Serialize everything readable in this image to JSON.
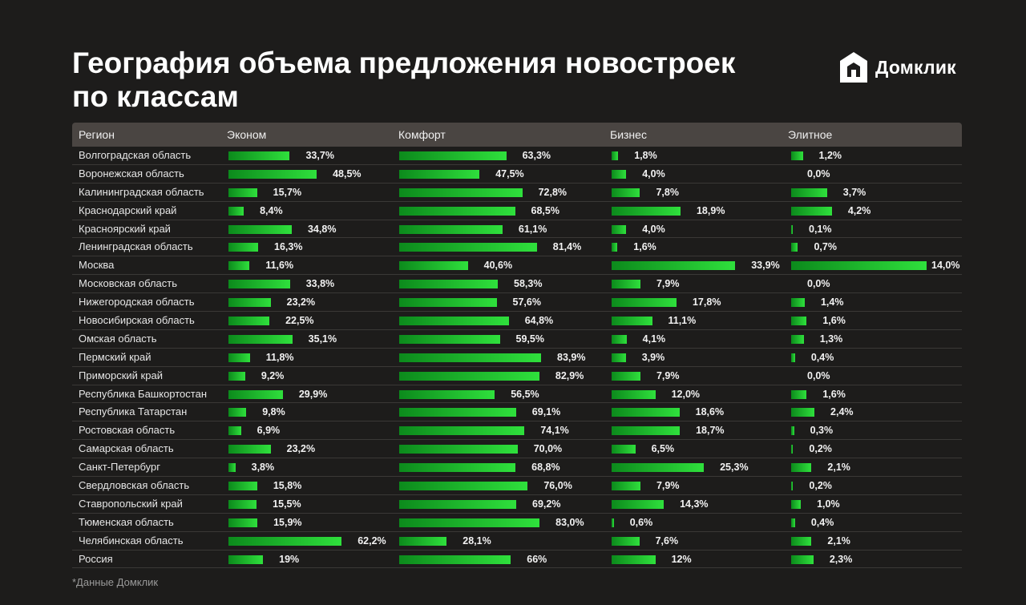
{
  "title_line1": "География объема предложения новостроек",
  "title_line2": "по классам",
  "brand": "Домклик",
  "footnote": "*Данные Домклик",
  "colors": {
    "background": "#1d1c1b",
    "bar": "#2fe03c",
    "header": "#4a4542"
  },
  "chart_data": {
    "type": "bar",
    "headers": [
      "Регион",
      "Эконом",
      "Комфорт",
      "Бизнес",
      "Элитное"
    ],
    "categories": [
      "Волгоградская область",
      "Воронежская область",
      "Калининградская область",
      "Краснодарский край",
      "Красноярский край",
      "Ленинградская область",
      "Москва",
      "Московская область",
      "Нижегородская область",
      "Новосибирская область",
      "Омская область",
      "Пермский край",
      "Приморский край",
      "Республика Башкортостан",
      "Республика Татарстан",
      "Ростовская область",
      "Самарская область",
      "Санкт-Петербург",
      "Свердловская область",
      "Ставропольский край",
      "Тюменская область",
      "Челябинская область",
      "Россия"
    ],
    "series": [
      {
        "name": "Эконом",
        "values": [
          33.7,
          48.5,
          15.7,
          8.4,
          34.8,
          16.3,
          11.6,
          33.8,
          23.2,
          22.5,
          35.1,
          11.8,
          9.2,
          29.9,
          9.8,
          6.9,
          23.2,
          3.8,
          15.8,
          15.5,
          15.9,
          62.2,
          19
        ],
        "labels": [
          "33,7%",
          "48,5%",
          "15,7%",
          "8,4%",
          "34,8%",
          "16,3%",
          "11,6%",
          "33,8%",
          "23,2%",
          "22,5%",
          "35,1%",
          "11,8%",
          "9,2%",
          "29,9%",
          "9,8%",
          "6,9%",
          "23,2%",
          "3,8%",
          "15,8%",
          "15,5%",
          "15,9%",
          "62,2%",
          "19%"
        ]
      },
      {
        "name": "Комфорт",
        "values": [
          63.3,
          47.5,
          72.8,
          68.5,
          61.1,
          81.4,
          40.6,
          58.3,
          57.6,
          64.8,
          59.5,
          83.9,
          82.9,
          56.5,
          69.1,
          74.1,
          70.0,
          68.8,
          76.0,
          69.2,
          83.0,
          28.1,
          66
        ],
        "labels": [
          "63,3%",
          "47,5%",
          "72,8%",
          "68,5%",
          "61,1%",
          "81,4%",
          "40,6%",
          "58,3%",
          "57,6%",
          "64,8%",
          "59,5%",
          "83,9%",
          "82,9%",
          "56,5%",
          "69,1%",
          "74,1%",
          "70,0%",
          "68,8%",
          "76,0%",
          "69,2%",
          "83,0%",
          "28,1%",
          "66%"
        ]
      },
      {
        "name": "Бизнес",
        "values": [
          1.8,
          4.0,
          7.8,
          18.9,
          4.0,
          1.6,
          33.9,
          7.9,
          17.8,
          11.1,
          4.1,
          3.9,
          7.9,
          12.0,
          18.6,
          18.7,
          6.5,
          25.3,
          7.9,
          14.3,
          0.6,
          7.6,
          12
        ],
        "labels": [
          "1,8%",
          "4,0%",
          "7,8%",
          "18,9%",
          "4,0%",
          "1,6%",
          "33,9%",
          "7,9%",
          "17,8%",
          "11,1%",
          "4,1%",
          "3,9%",
          "7,9%",
          "12,0%",
          "18,6%",
          "18,7%",
          "6,5%",
          "25,3%",
          "7,9%",
          "14,3%",
          "0,6%",
          "7,6%",
          "12%"
        ]
      },
      {
        "name": "Элитное",
        "values": [
          1.2,
          0.0,
          3.7,
          4.2,
          0.1,
          0.7,
          14.0,
          0.0,
          1.4,
          1.6,
          1.3,
          0.4,
          0.0,
          1.6,
          2.4,
          0.3,
          0.2,
          2.1,
          0.2,
          1.0,
          0.4,
          2.1,
          2.3
        ],
        "labels": [
          "1,2%",
          "0,0%",
          "3,7%",
          "4,2%",
          "0,1%",
          "0,7%",
          "14,0%",
          "0,0%",
          "1,4%",
          "1,6%",
          "1,3%",
          "0,4%",
          "0,0%",
          "1,6%",
          "2,4%",
          "0,3%",
          "0,2%",
          "2,1%",
          "0,2%",
          "1,0%",
          "0,4%",
          "2,1%",
          "2,3%"
        ]
      }
    ]
  }
}
